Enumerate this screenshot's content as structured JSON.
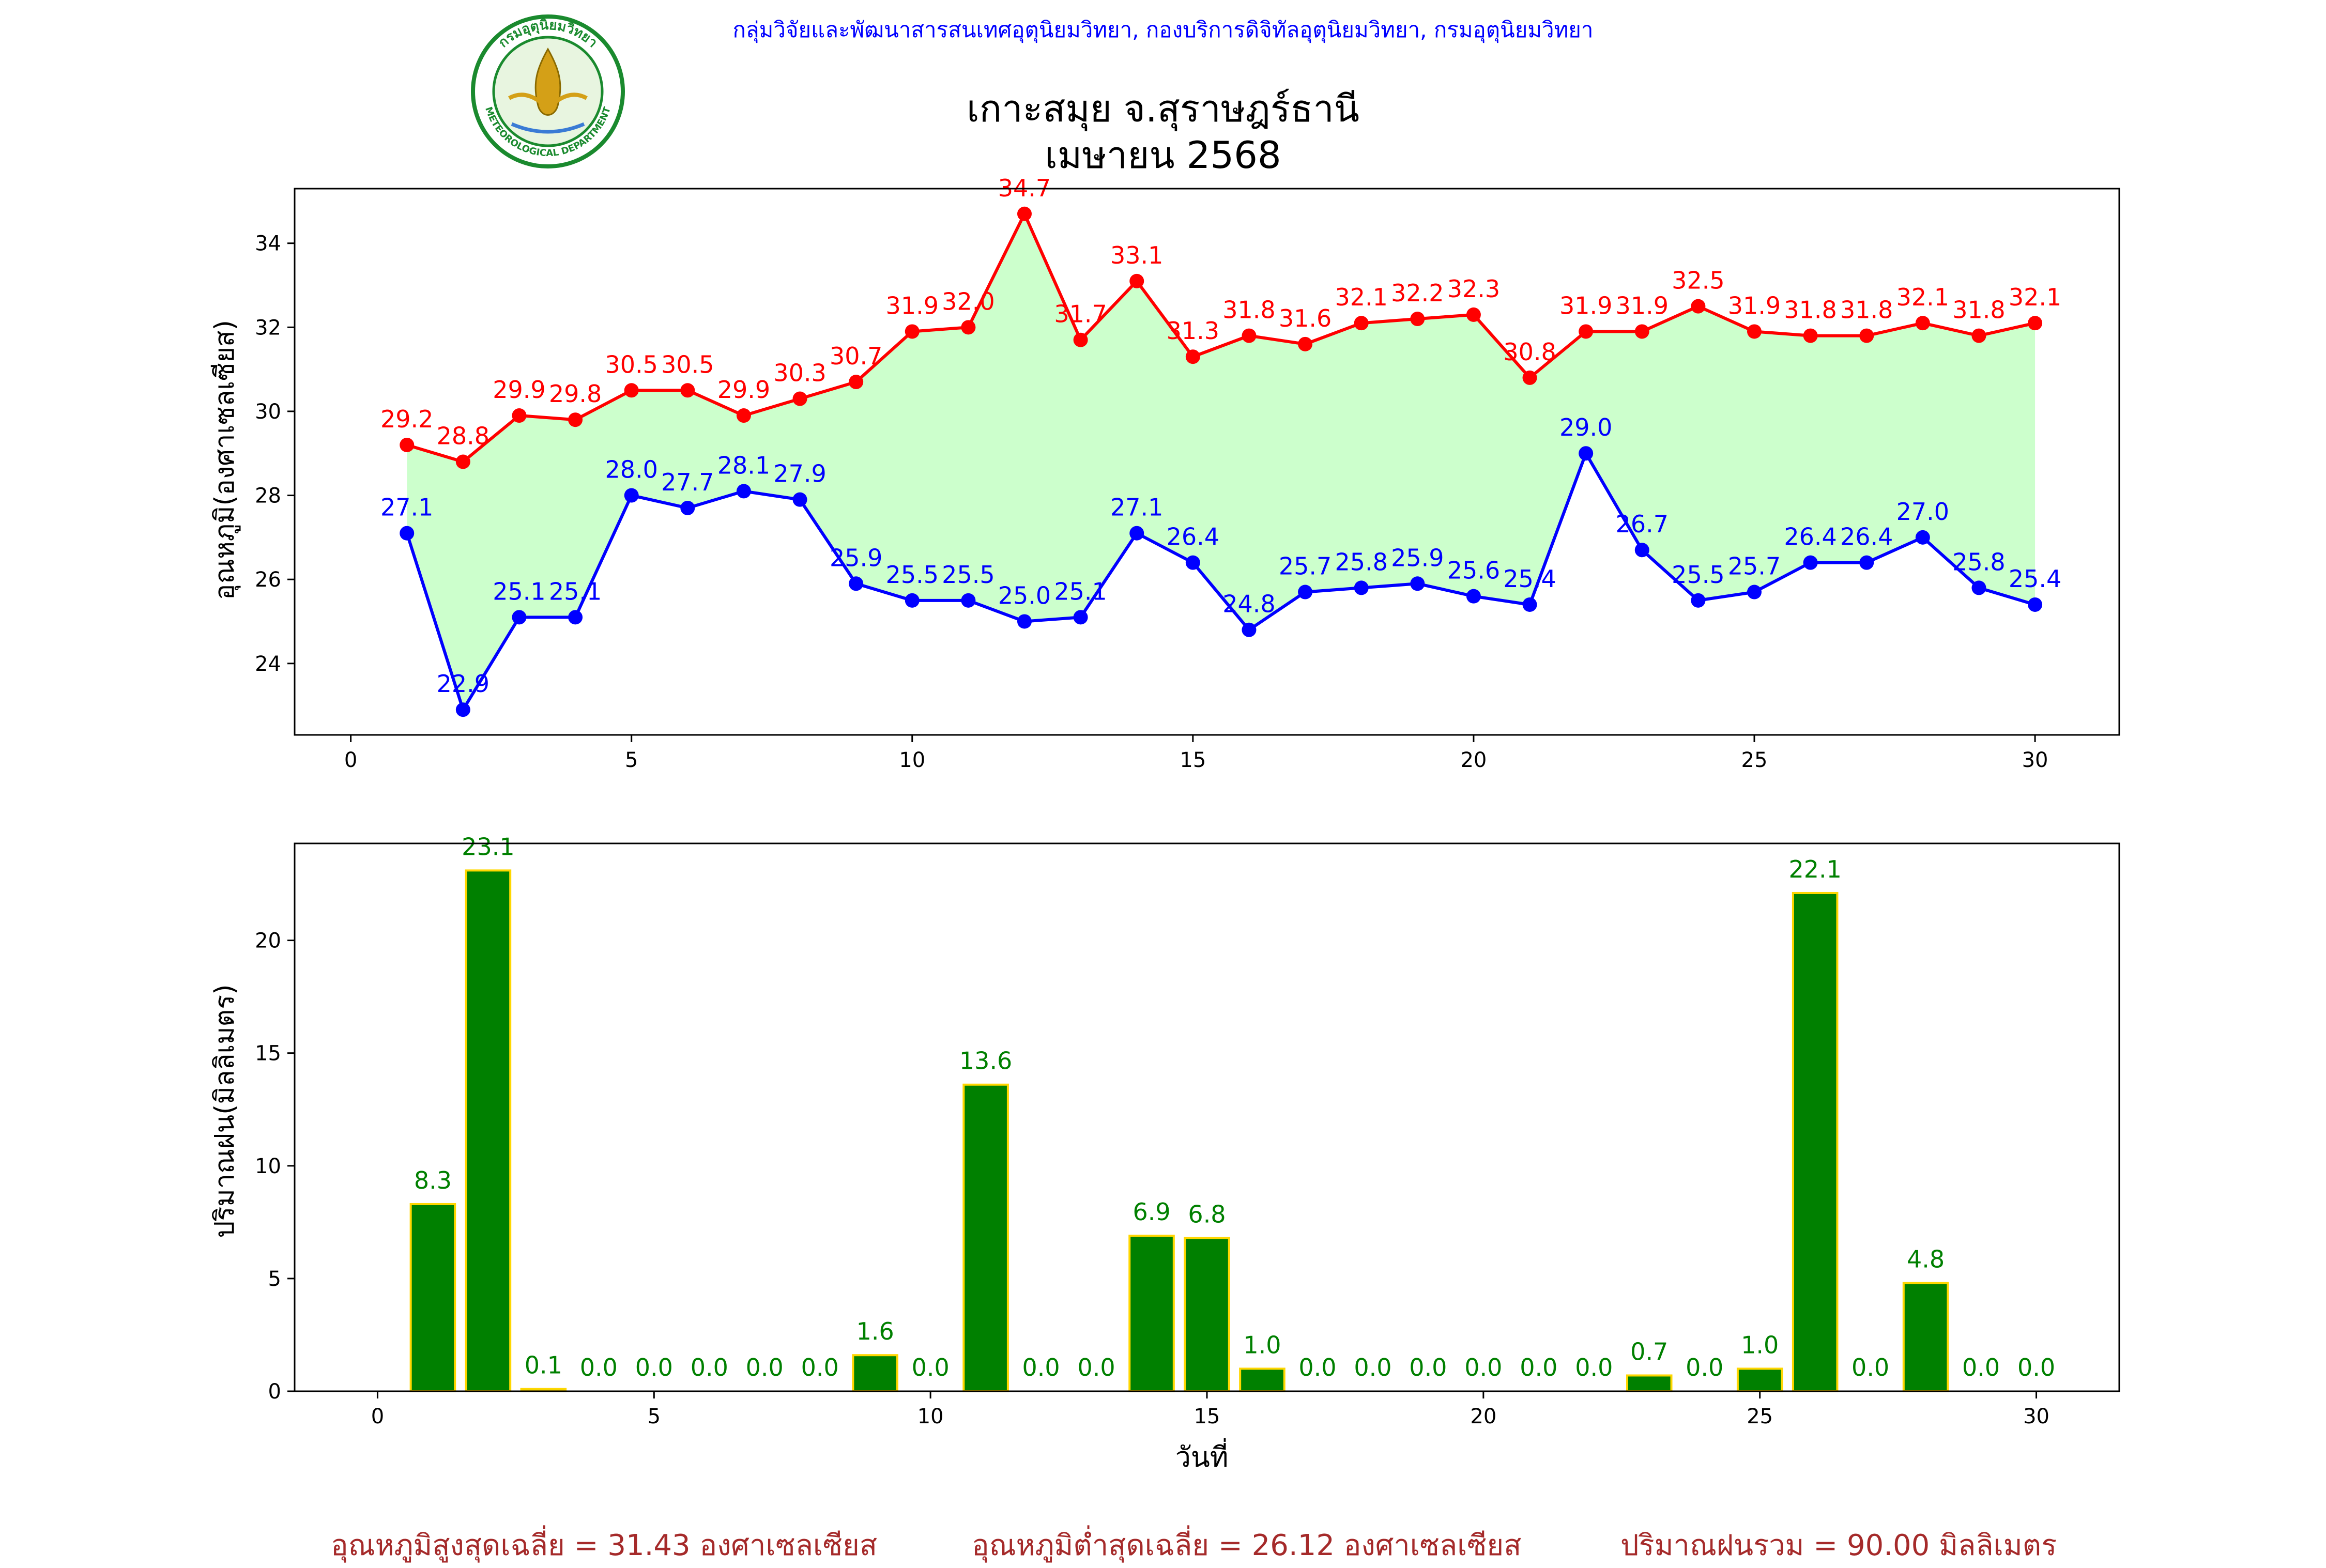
{
  "header": {
    "credit": "กลุ่มวิจัยและพัฒนาสารสนเทศอุตุนิยมวิทยา, กองบริการดิจิทัลอุตุนิยมวิทยา, กรมอุตุนิยมวิทยา",
    "credit_color": "#0000ff",
    "logo": {
      "name": "meteorological-department-seal",
      "text_th": "กรมอุตุนิยมวิทยา",
      "text_en": "METEOROLOGICAL DEPARTMENT",
      "ring_color": "#1a8a2e"
    }
  },
  "chart_data": [
    {
      "type": "line",
      "title": "เกาะสมุย จ.สุราษฎร์ธานี\nเมษายน 2568",
      "title_lines": [
        "เกาะสมุย จ.สุราษฎร์ธานี",
        "เมษายน 2568"
      ],
      "ylabel": "อุณหภูมิ(องศาเซลเซียส)",
      "xlim": [
        -1,
        31.5
      ],
      "ylim": [
        22.3,
        35.3
      ],
      "xticks": [
        "0",
        "5",
        "10",
        "15",
        "20",
        "25",
        "30"
      ],
      "yticks": [
        "24",
        "26",
        "28",
        "30",
        "32",
        "34"
      ],
      "fill_between": {
        "color": "#ccffcc"
      },
      "x": [
        1,
        2,
        3,
        4,
        5,
        6,
        7,
        8,
        9,
        10,
        11,
        12,
        13,
        14,
        15,
        16,
        17,
        18,
        19,
        20,
        21,
        22,
        23,
        24,
        25,
        26,
        27,
        28,
        29,
        30
      ],
      "series": [
        {
          "color": "#ff0000",
          "values": [
            29.2,
            28.8,
            29.9,
            29.8,
            30.5,
            30.5,
            29.9,
            30.3,
            30.7,
            31.9,
            32.0,
            34.7,
            31.7,
            33.1,
            31.3,
            31.8,
            31.6,
            32.1,
            32.2,
            32.3,
            30.8,
            31.9,
            31.9,
            32.5,
            31.9,
            31.8,
            31.8,
            32.1,
            31.8,
            32.1
          ],
          "labels": [
            "29.2",
            "28.8",
            "29.9",
            "29.8",
            "30.5",
            "30.5",
            "29.9",
            "30.3",
            "30.7",
            "31.9",
            "32.0",
            "34.7",
            "31.7",
            "33.1",
            "31.3",
            "31.8",
            "31.6",
            "32.1",
            "32.2",
            "32.3",
            "30.8",
            "31.9",
            "31.9",
            "32.5",
            "31.9",
            "31.8",
            "31.8",
            "32.1",
            "31.8",
            "32.1"
          ]
        },
        {
          "color": "#0000ff",
          "values": [
            27.1,
            22.9,
            25.1,
            25.1,
            28.0,
            27.7,
            28.1,
            27.9,
            25.9,
            25.5,
            25.5,
            25.0,
            25.1,
            27.1,
            26.4,
            24.8,
            25.7,
            25.8,
            25.9,
            25.6,
            25.4,
            29.0,
            26.7,
            25.5,
            25.7,
            26.4,
            26.4,
            27.0,
            25.8,
            25.4
          ],
          "labels": [
            "27.1",
            "22.9",
            "25.1",
            "25.1",
            "28.0",
            "27.7",
            "28.1",
            "27.9",
            "25.9",
            "25.5",
            "25.5",
            "25.0",
            "25.1",
            "27.1",
            "26.4",
            "24.8",
            "25.7",
            "25.8",
            "25.9",
            "25.6",
            "25.4",
            "29.0",
            "26.7",
            "25.5",
            "25.7",
            "26.4",
            "26.4",
            "27.0",
            "25.8",
            "25.4"
          ]
        }
      ]
    },
    {
      "type": "bar",
      "xlabel": "วันที่",
      "ylabel": "ปริมาณฝน(มิลลิเมตร)",
      "xlim": [
        -1.5,
        31.5
      ],
      "ylim": [
        0,
        24.3
      ],
      "xticks": [
        "0",
        "5",
        "10",
        "15",
        "20",
        "25",
        "30"
      ],
      "yticks": [
        "0",
        "5",
        "10",
        "15",
        "20"
      ],
      "bar_color": "#008000",
      "edge_color": "#ffd700",
      "label_color": "#008000",
      "x": [
        1,
        2,
        3,
        4,
        5,
        6,
        7,
        8,
        9,
        10,
        11,
        12,
        13,
        14,
        15,
        16,
        17,
        18,
        19,
        20,
        21,
        22,
        23,
        24,
        25,
        26,
        27,
        28,
        29,
        30
      ],
      "values": [
        8.3,
        23.1,
        0.1,
        0.0,
        0.0,
        0.0,
        0.0,
        0.0,
        1.6,
        0.0,
        13.6,
        0.0,
        0.0,
        6.9,
        6.8,
        1.0,
        0.0,
        0.0,
        0.0,
        0.0,
        0.0,
        0.0,
        0.7,
        0.0,
        1.0,
        22.1,
        0.0,
        4.8,
        0.0,
        0.0
      ],
      "labels": [
        "8.3",
        "23.1",
        "0.1",
        "0.0",
        "0.0",
        "0.0",
        "0.0",
        "0.0",
        "1.6",
        "0.0",
        "13.6",
        "0.0",
        "0.0",
        "6.9",
        "6.8",
        "1.0",
        "0.0",
        "0.0",
        "0.0",
        "0.0",
        "0.0",
        "0.0",
        "0.7",
        "0.0",
        "1.0",
        "22.1",
        "0.0",
        "4.8",
        "0.0",
        "0.0"
      ]
    }
  ],
  "footer": {
    "avg_max": "อุณหภูมิสูงสุดเฉลี่ย = 31.43 องศาเซลเซียส",
    "avg_min": "อุณหภูมิต่ำสุดเฉลี่ย = 26.12 องศาเซลเซียส",
    "total_rain": "ปริมาณฝนรวม = 90.00 มิลลิเมตร",
    "color": "#a52a2a"
  }
}
